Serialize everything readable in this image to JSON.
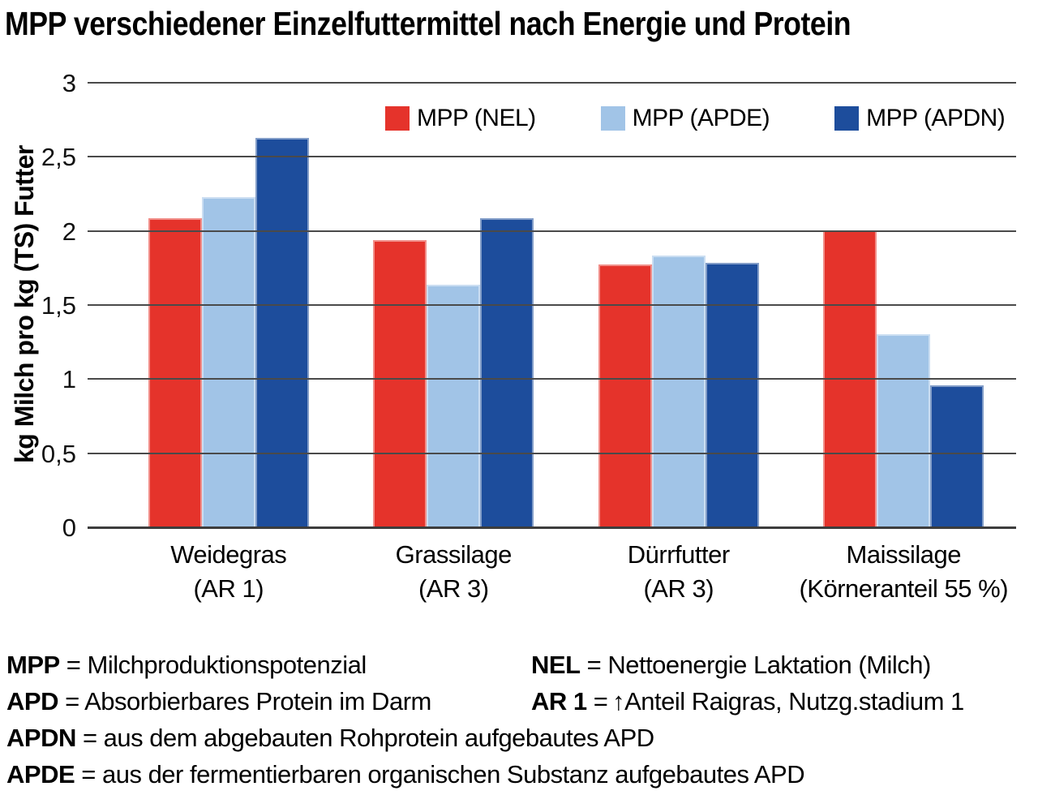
{
  "title": "MPP verschiedener Einzelfuttermittel nach Energie und Protein",
  "chart_data": {
    "type": "bar",
    "title": "MPP verschiedener Einzelfuttermittel nach Energie und Protein",
    "xlabel": "",
    "ylabel": "kg Milch pro kg (TS) Futter",
    "ylim": [
      0,
      3
    ],
    "ytick_step": 0.5,
    "ytick_labels": [
      "3",
      "2,5",
      "2",
      "1,5",
      "1",
      "0,5",
      "0"
    ],
    "grid": true,
    "legend_position": "top-inside",
    "categories": [
      {
        "line1": "Weidegras",
        "line2": "(AR 1)"
      },
      {
        "line1": "Grassilage",
        "line2": "(AR 3)"
      },
      {
        "line1": "Dürrfutter",
        "line2": "(AR 3)"
      },
      {
        "line1": "Maissilage",
        "line2": "(Körneranteil 55 %)"
      }
    ],
    "series": [
      {
        "name": "MPP (NEL)",
        "color": "#e5332b",
        "values": [
          2.08,
          1.93,
          1.77,
          2.0
        ]
      },
      {
        "name": "MPP (APDE)",
        "color": "#a1c4e7",
        "values": [
          2.22,
          1.63,
          1.83,
          1.3
        ]
      },
      {
        "name": "MPP (APDN)",
        "color": "#1d4d9c",
        "values": [
          2.62,
          2.08,
          1.78,
          0.95
        ]
      }
    ]
  },
  "footer": {
    "r1l": {
      "term": "MPP",
      "def": " = Milchproduktionspotenzial"
    },
    "r1r": {
      "term": "NEL",
      "def": " = Nettoenergie Laktation (Milch)"
    },
    "r2l": {
      "term": "APD",
      "def": " = Absorbierbares Protein im Darm"
    },
    "r2r": {
      "term": "AR 1",
      "def": " = ↑Anteil Raigras, Nutzg.stadium 1"
    },
    "r3": {
      "term": "APDN",
      "def": " = aus dem abgebauten Rohprotein aufgebautes APD"
    },
    "r4": {
      "term": "APDE",
      "def": " = aus der fermentierbaren organischen Substanz aufgebautes APD"
    }
  }
}
